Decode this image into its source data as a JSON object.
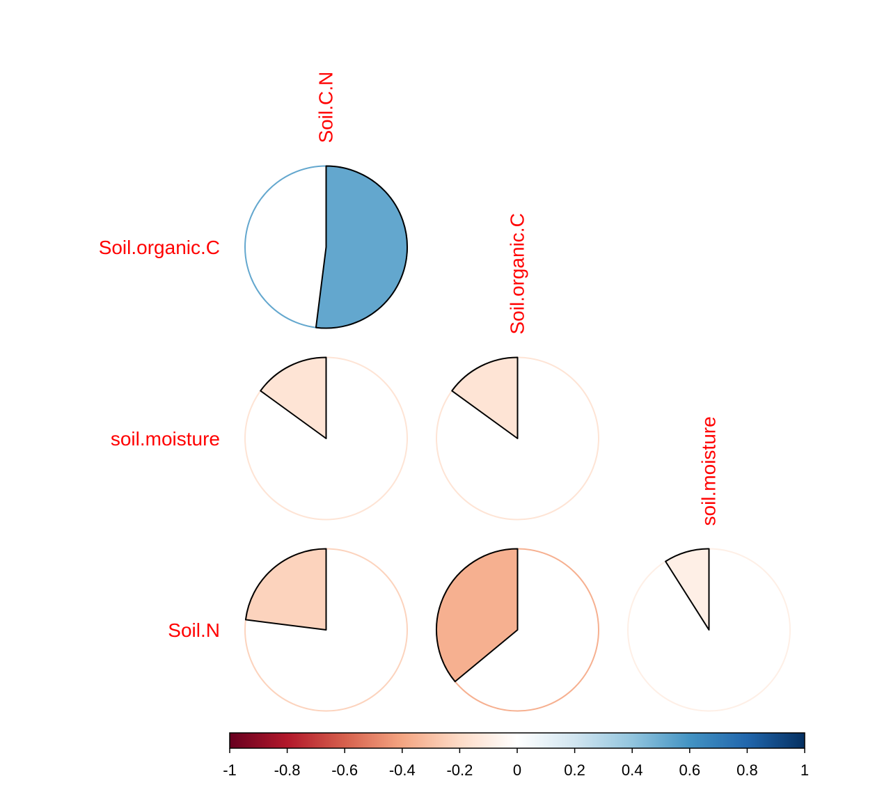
{
  "chart_data": {
    "type": "heatmap",
    "title": "",
    "variables": [
      "Soil.C.N",
      "Soil.organic.C",
      "soil.moisture",
      "Soil.N"
    ],
    "column_labels": [
      "Soil.C.N",
      "Soil.organic.C",
      "soil.moisture"
    ],
    "row_labels": [
      "Soil.organic.C",
      "soil.moisture",
      "Soil.N"
    ],
    "cells": [
      {
        "row": "Soil.organic.C",
        "col": "Soil.C.N",
        "value": 0.52
      },
      {
        "row": "soil.moisture",
        "col": "Soil.C.N",
        "value": -0.15
      },
      {
        "row": "soil.moisture",
        "col": "Soil.organic.C",
        "value": -0.15
      },
      {
        "row": "Soil.N",
        "col": "Soil.C.N",
        "value": -0.23
      },
      {
        "row": "Soil.N",
        "col": "Soil.organic.C",
        "value": -0.36
      },
      {
        "row": "Soil.N",
        "col": "soil.moisture",
        "value": -0.09
      }
    ],
    "colorbar": {
      "range": [
        -1,
        1
      ],
      "ticks": [
        "-1",
        "-0.8",
        "-0.6",
        "-0.4",
        "-0.2",
        "0",
        "0.2",
        "0.4",
        "0.6",
        "0.8",
        "1"
      ],
      "palette": [
        "#67001f",
        "#b2182b",
        "#d6604d",
        "#f4a582",
        "#fddbc7",
        "#ffffff",
        "#d1e5f0",
        "#92c5de",
        "#4393c3",
        "#2166ac",
        "#053061"
      ],
      "placement": "bottom"
    },
    "label_color": "#ff0000",
    "method": "pie",
    "layout": "lower"
  }
}
